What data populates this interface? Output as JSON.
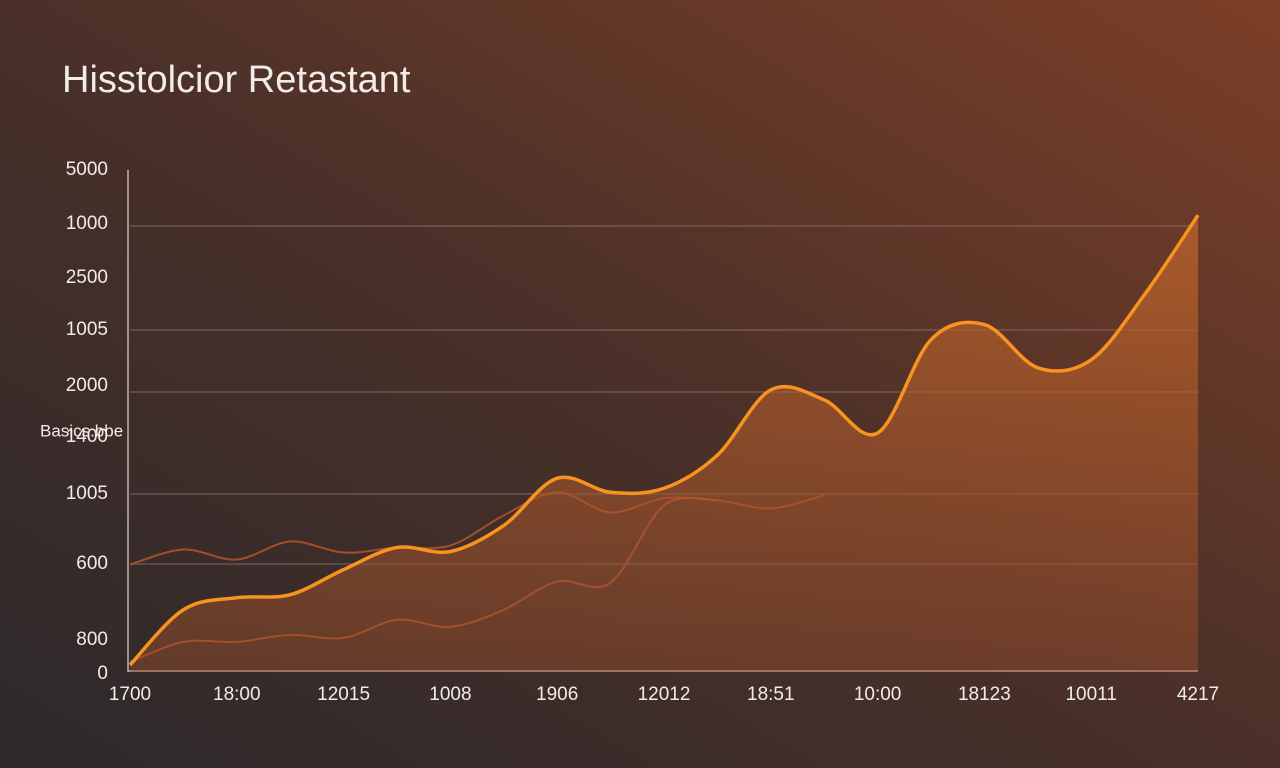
{
  "chart_data": {
    "type": "line",
    "title": "Hisstolcior Retastant",
    "ylabel": "Basics.bbe",
    "y_labels": [
      "5000",
      "1000",
      "2500",
      "1005",
      "2000",
      "1400",
      "1005",
      "600",
      "800",
      "0"
    ],
    "ylim": [
      0,
      5000
    ],
    "categories": [
      "1700",
      null,
      "18:00",
      null,
      "12015",
      null,
      "1008",
      null,
      "1906",
      null,
      "12012",
      null,
      "18:51",
      null,
      "10:00",
      null,
      "18123",
      null,
      "10011",
      null,
      "4217"
    ],
    "series": [
      {
        "color": "#f7931e",
        "area": true,
        "values": [
          70,
          620,
          740,
          770,
          1020,
          1240,
          1200,
          1460,
          1930,
          1790,
          1830,
          2160,
          2810,
          2710,
          2380,
          3310,
          3460,
          3030,
          3110,
          3760,
          4550
        ]
      },
      {
        "color": "#b5532c",
        "values": [
          1070,
          1220,
          1120,
          1300,
          1190,
          1240,
          1260,
          1560,
          1790,
          1590,
          1730,
          1710,
          1630,
          1760,
          null,
          null,
          null,
          null,
          null,
          null,
          null
        ]
      },
      {
        "color": "#b8552e",
        "values": [
          100,
          300,
          300,
          370,
          340,
          520,
          450,
          620,
          900,
          890,
          1660,
          1710,
          null,
          null,
          null,
          null,
          null,
          null,
          null,
          null,
          null
        ]
      }
    ]
  }
}
